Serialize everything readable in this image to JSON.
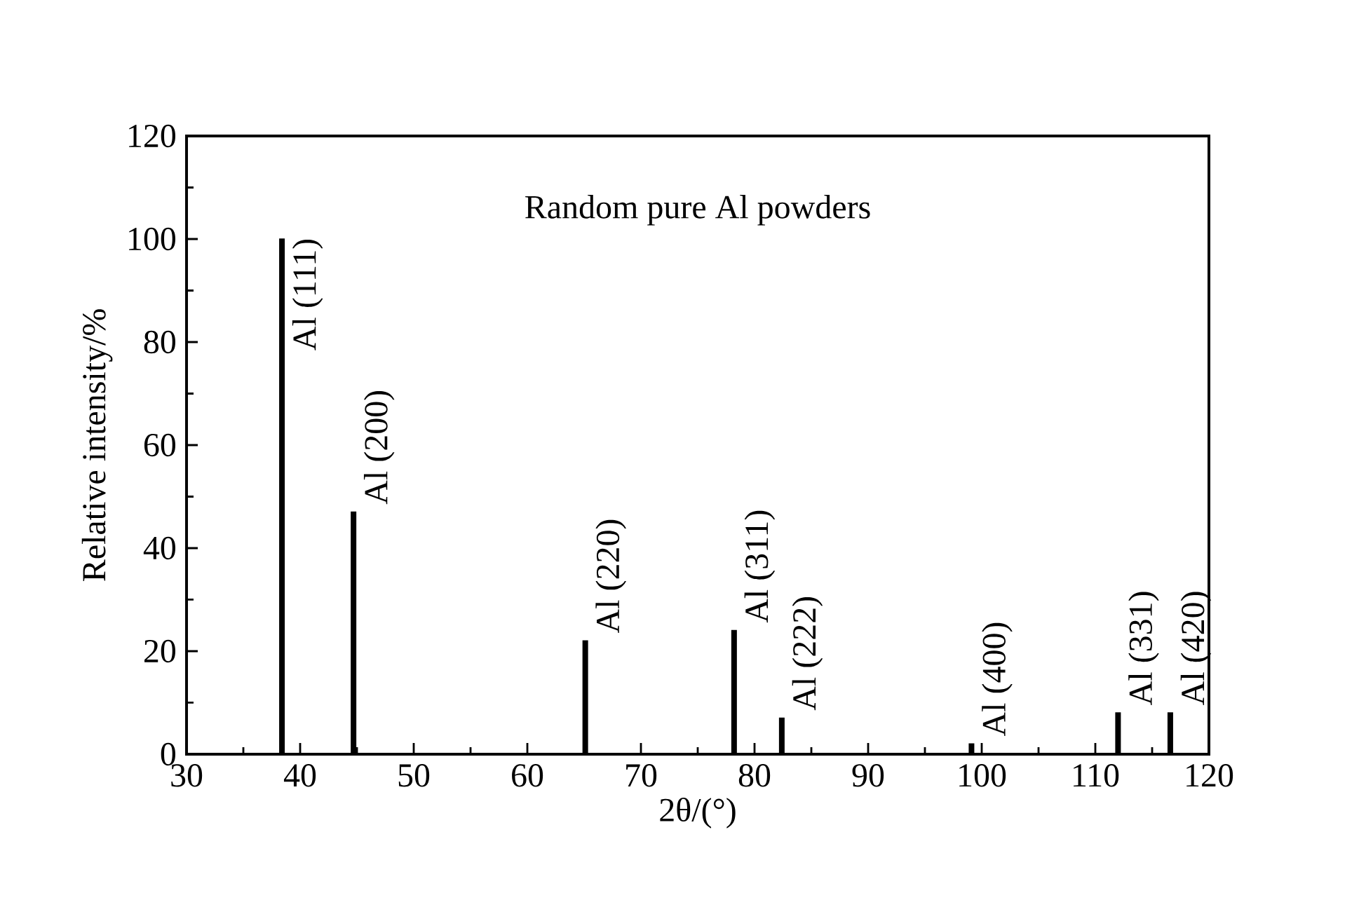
{
  "chart_data": {
    "type": "bar",
    "title": "Random pure Al powders",
    "xlabel": "2θ/(°)",
    "ylabel": "Relative intensity/%",
    "x": [
      38.4,
      44.7,
      65.1,
      78.2,
      82.4,
      99.1,
      112.0,
      116.6
    ],
    "values": [
      100,
      47,
      22,
      24,
      7,
      2,
      8,
      8
    ],
    "color": "#000000",
    "xlim": [
      30,
      120
    ],
    "xticks": [
      30,
      40,
      50,
      60,
      70,
      80,
      90,
      100,
      110,
      120
    ],
    "ylim": [
      0,
      120
    ],
    "yticks": [
      0,
      20,
      40,
      60,
      80,
      100,
      120
    ],
    "grid": false,
    "annotations": [
      {
        "text": "Al (111)",
        "x": 38.4,
        "y": 100
      },
      {
        "text": "Al (200)",
        "x": 44.7,
        "y": 47
      },
      {
        "text": "Al (220)",
        "x": 65.1,
        "y": 22
      },
      {
        "text": "Al (311)",
        "x": 78.2,
        "y": 24
      },
      {
        "text": "Al (222)",
        "x": 82.4,
        "y": 7
      },
      {
        "text": "Al (400)",
        "x": 99.1,
        "y": 2
      },
      {
        "text": "Al (331)",
        "x": 112.0,
        "y": 8
      },
      {
        "text": "Al (420)",
        "x": 116.6,
        "y": 8
      }
    ]
  }
}
